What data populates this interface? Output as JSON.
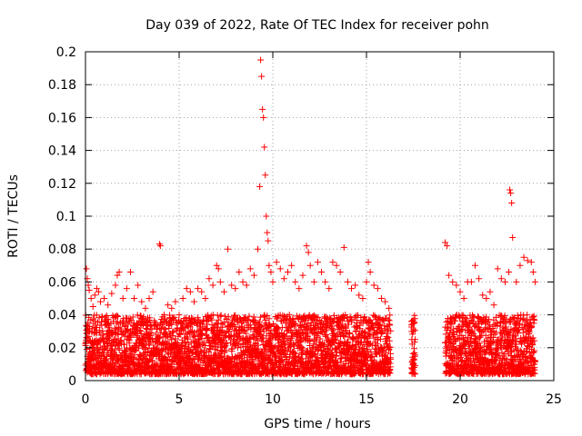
{
  "chart_data": {
    "type": "scatter",
    "title": "Day 039 of 2022, Rate Of TEC Index for receiver pohn",
    "xlabel": "GPS time / hours",
    "ylabel": "ROTI / TECUs",
    "xlim": [
      0,
      25
    ],
    "ylim": [
      0,
      0.2
    ],
    "xticks": [
      0,
      5,
      10,
      15,
      20,
      25
    ],
    "yticks": [
      0,
      0.02,
      0.04,
      0.06,
      0.08,
      0.1,
      0.12,
      0.14,
      0.16,
      0.18,
      0.2
    ],
    "ytick_labels": [
      "0",
      "0.02",
      "0.04",
      "0.06",
      "0.08",
      "0.1",
      "0.12",
      "0.14",
      "0.16",
      "0.18",
      "0.2"
    ],
    "grid": true,
    "marker": "+",
    "color": "#ff0000",
    "series": [
      {
        "name": "ROTI",
        "points": [
          [
            0.05,
            0.068
          ],
          [
            0.1,
            0.062
          ],
          [
            0.15,
            0.058
          ],
          [
            0.2,
            0.055
          ],
          [
            0.3,
            0.05
          ],
          [
            0.4,
            0.045
          ],
          [
            0.5,
            0.052
          ],
          [
            0.6,
            0.056
          ],
          [
            0.7,
            0.054
          ],
          [
            0.8,
            0.048
          ],
          [
            1.0,
            0.05
          ],
          [
            1.2,
            0.046
          ],
          [
            1.4,
            0.053
          ],
          [
            1.6,
            0.058
          ],
          [
            1.7,
            0.064
          ],
          [
            1.8,
            0.066
          ],
          [
            2.0,
            0.05
          ],
          [
            2.2,
            0.056
          ],
          [
            2.4,
            0.066
          ],
          [
            2.6,
            0.05
          ],
          [
            2.8,
            0.058
          ],
          [
            3.0,
            0.048
          ],
          [
            3.2,
            0.044
          ],
          [
            3.4,
            0.05
          ],
          [
            3.6,
            0.054
          ],
          [
            3.95,
            0.083
          ],
          [
            4.0,
            0.082
          ],
          [
            4.2,
            0.04
          ],
          [
            4.4,
            0.046
          ],
          [
            4.6,
            0.044
          ],
          [
            4.8,
            0.048
          ],
          [
            5.0,
            0.04
          ],
          [
            5.2,
            0.05
          ],
          [
            5.4,
            0.056
          ],
          [
            5.6,
            0.054
          ],
          [
            5.8,
            0.048
          ],
          [
            6.0,
            0.056
          ],
          [
            6.2,
            0.054
          ],
          [
            6.4,
            0.05
          ],
          [
            6.6,
            0.062
          ],
          [
            6.8,
            0.058
          ],
          [
            7.0,
            0.07
          ],
          [
            7.1,
            0.068
          ],
          [
            7.2,
            0.06
          ],
          [
            7.4,
            0.054
          ],
          [
            7.6,
            0.08
          ],
          [
            7.8,
            0.058
          ],
          [
            8.0,
            0.056
          ],
          [
            8.2,
            0.066
          ],
          [
            8.4,
            0.06
          ],
          [
            8.6,
            0.058
          ],
          [
            8.8,
            0.068
          ],
          [
            9.0,
            0.064
          ],
          [
            9.2,
            0.08
          ],
          [
            9.3,
            0.118
          ],
          [
            9.35,
            0.195
          ],
          [
            9.4,
            0.185
          ],
          [
            9.45,
            0.165
          ],
          [
            9.5,
            0.16
          ],
          [
            9.55,
            0.142
          ],
          [
            9.6,
            0.125
          ],
          [
            9.65,
            0.1
          ],
          [
            9.7,
            0.09
          ],
          [
            9.75,
            0.085
          ],
          [
            9.8,
            0.07
          ],
          [
            9.9,
            0.066
          ],
          [
            10.0,
            0.06
          ],
          [
            10.2,
            0.072
          ],
          [
            10.4,
            0.068
          ],
          [
            10.6,
            0.062
          ],
          [
            10.8,
            0.066
          ],
          [
            11.0,
            0.07
          ],
          [
            11.2,
            0.06
          ],
          [
            11.4,
            0.056
          ],
          [
            11.6,
            0.064
          ],
          [
            11.8,
            0.082
          ],
          [
            11.9,
            0.078
          ],
          [
            12.0,
            0.07
          ],
          [
            12.2,
            0.06
          ],
          [
            12.4,
            0.072
          ],
          [
            12.6,
            0.066
          ],
          [
            12.8,
            0.06
          ],
          [
            13.0,
            0.056
          ],
          [
            13.2,
            0.072
          ],
          [
            13.4,
            0.07
          ],
          [
            13.6,
            0.066
          ],
          [
            13.8,
            0.081
          ],
          [
            14.0,
            0.06
          ],
          [
            14.2,
            0.056
          ],
          [
            14.4,
            0.058
          ],
          [
            14.6,
            0.052
          ],
          [
            14.8,
            0.05
          ],
          [
            15.0,
            0.06
          ],
          [
            15.1,
            0.072
          ],
          [
            15.2,
            0.066
          ],
          [
            15.4,
            0.058
          ],
          [
            15.6,
            0.056
          ],
          [
            15.8,
            0.05
          ],
          [
            16.0,
            0.048
          ],
          [
            16.2,
            0.044
          ],
          [
            17.4,
            0.036
          ],
          [
            17.5,
            0.03
          ],
          [
            17.6,
            0.025
          ],
          [
            17.45,
            0.012
          ],
          [
            17.55,
            0.008
          ],
          [
            19.2,
            0.084
          ],
          [
            19.3,
            0.082
          ],
          [
            19.4,
            0.064
          ],
          [
            19.6,
            0.06
          ],
          [
            19.8,
            0.058
          ],
          [
            20.0,
            0.054
          ],
          [
            20.2,
            0.05
          ],
          [
            20.4,
            0.06
          ],
          [
            20.6,
            0.06
          ],
          [
            20.8,
            0.07
          ],
          [
            21.0,
            0.062
          ],
          [
            21.2,
            0.052
          ],
          [
            21.4,
            0.05
          ],
          [
            21.6,
            0.054
          ],
          [
            21.8,
            0.046
          ],
          [
            22.0,
            0.068
          ],
          [
            22.2,
            0.062
          ],
          [
            22.4,
            0.06
          ],
          [
            22.6,
            0.066
          ],
          [
            22.65,
            0.116
          ],
          [
            22.7,
            0.114
          ],
          [
            22.75,
            0.108
          ],
          [
            22.8,
            0.087
          ],
          [
            23.0,
            0.06
          ],
          [
            23.2,
            0.07
          ],
          [
            23.4,
            0.075
          ],
          [
            23.6,
            0.073
          ],
          [
            23.8,
            0.072
          ],
          [
            23.9,
            0.066
          ],
          [
            24.0,
            0.06
          ]
        ],
        "band": {
          "segments": [
            [
              0,
              16.3
            ],
            [
              17.4,
              17.6
            ],
            [
              19.2,
              24.0
            ]
          ],
          "floor": [
            0.004,
            0.04
          ],
          "step_hours": 0.005
        }
      }
    ]
  }
}
